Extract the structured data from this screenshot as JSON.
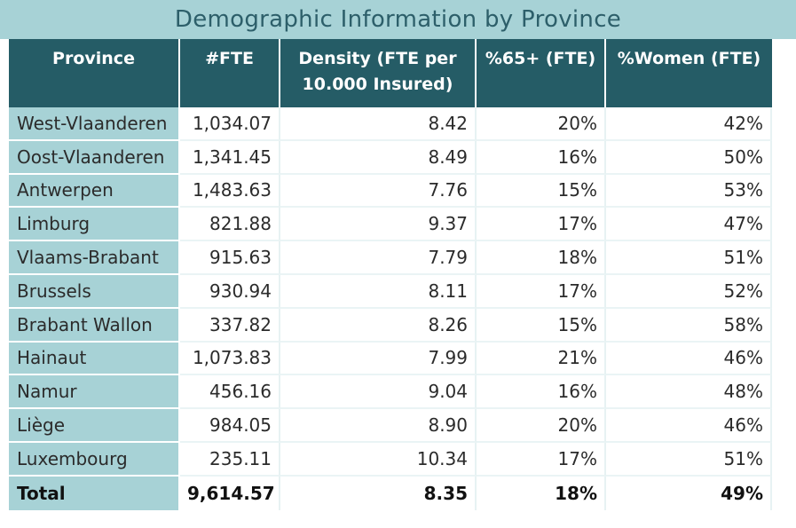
{
  "title": "Demographic Information by Province",
  "colors": {
    "title_band": "#a7d2d6",
    "title_text": "#2d5f6a",
    "header_bg": "#255c66",
    "header_text": "#ffffff",
    "province_col_bg": "#a7d2d6"
  },
  "chart_data": {
    "type": "table",
    "title": "Demographic Information by Province",
    "columns": [
      "Province",
      "#FTE",
      "Density (FTE per 10.000 Insured)",
      "%65+ (FTE)",
      "%Women (FTE)"
    ],
    "rows": [
      [
        "West-Vlaanderen",
        "1,034.07",
        "8.42",
        "20%",
        "42%"
      ],
      [
        "Oost-Vlaanderen",
        "1,341.45",
        "8.49",
        "16%",
        "50%"
      ],
      [
        "Antwerpen",
        "1,483.63",
        "7.76",
        "15%",
        "53%"
      ],
      [
        "Limburg",
        "821.88",
        "9.37",
        "17%",
        "47%"
      ],
      [
        "Vlaams-Brabant",
        "915.63",
        "7.79",
        "18%",
        "51%"
      ],
      [
        "Brussels",
        "930.94",
        "8.11",
        "17%",
        "52%"
      ],
      [
        "Brabant Wallon",
        "337.82",
        "8.26",
        "15%",
        "58%"
      ],
      [
        "Hainaut",
        "1,073.83",
        "7.99",
        "21%",
        "46%"
      ],
      [
        "Namur",
        "456.16",
        "9.04",
        "16%",
        "48%"
      ],
      [
        "Liège",
        "984.05",
        "8.90",
        "20%",
        "46%"
      ],
      [
        "Luxembourg",
        "235.11",
        "10.34",
        "17%",
        "51%"
      ]
    ],
    "total": [
      "Total",
      "9,614.57",
      "8.35",
      "18%",
      "49%"
    ]
  }
}
